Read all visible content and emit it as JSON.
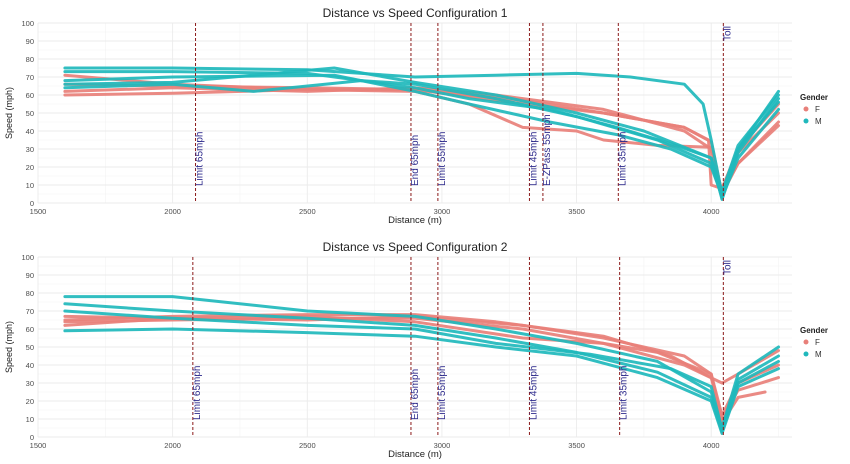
{
  "colors": {
    "F": "#e8807a",
    "M": "#20b8bc",
    "marker_line": "#8b1a1a",
    "marker_text": "#2e2b8c",
    "grid": "#ebebeb",
    "axis_text": "#4d4d4d"
  },
  "legend": {
    "title": "Gender",
    "items": [
      {
        "key": "F",
        "label": "F"
      },
      {
        "key": "M",
        "label": "M"
      }
    ]
  },
  "chart_data": [
    {
      "type": "line",
      "title": "Distance vs Speed Configuration 1",
      "xlabel": "Distance (m)",
      "ylabel": "Speed (mph)",
      "xlim": [
        1500,
        4300
      ],
      "ylim": [
        0,
        100
      ],
      "xticks": [
        1500,
        2000,
        2500,
        3000,
        3500,
        4000
      ],
      "yticks": [
        0,
        10,
        20,
        30,
        40,
        50,
        60,
        70,
        80,
        90,
        100
      ],
      "grid": true,
      "legend_position": "right",
      "markers": [
        {
          "x": 2085,
          "label": "Limit 65mph"
        },
        {
          "x": 2885,
          "label": "End 65mph"
        },
        {
          "x": 2985,
          "label": "Limit 55mph"
        },
        {
          "x": 3325,
          "label": "Limit 45mph"
        },
        {
          "x": 3375,
          "label": "E-ZPass 55mph"
        },
        {
          "x": 3655,
          "label": "Limit 35mph"
        },
        {
          "x": 4045,
          "label": "Toll"
        }
      ],
      "series": [
        {
          "group": "F",
          "points": [
            [
              1600,
              71
            ],
            [
              2000,
              66
            ],
            [
              2500,
              63
            ],
            [
              2900,
              63
            ],
            [
              3200,
              57
            ],
            [
              3600,
              50
            ],
            [
              3900,
              42
            ],
            [
              4000,
              34
            ],
            [
              4040,
              5
            ],
            [
              4100,
              22
            ],
            [
              4250,
              43
            ]
          ]
        },
        {
          "group": "F",
          "points": [
            [
              1600,
              60
            ],
            [
              2000,
              61
            ],
            [
              2500,
              63
            ],
            [
              2900,
              62
            ],
            [
              3100,
              55
            ],
            [
              3300,
              42
            ],
            [
              3500,
              40
            ],
            [
              3600,
              35
            ],
            [
              3800,
              32
            ],
            [
              4000,
              31
            ],
            [
              4040,
              6
            ],
            [
              4100,
              22
            ],
            [
              4250,
              45
            ]
          ]
        },
        {
          "group": "F",
          "points": [
            [
              1600,
              66
            ],
            [
              2000,
              65
            ],
            [
              2500,
              64
            ],
            [
              2900,
              63
            ],
            [
              3300,
              57
            ],
            [
              3600,
              50
            ],
            [
              3900,
              42
            ],
            [
              3990,
              35
            ],
            [
              4000,
              10
            ],
            [
              4040,
              8
            ],
            [
              4100,
              30
            ],
            [
              4250,
              55
            ]
          ]
        },
        {
          "group": "F",
          "points": [
            [
              1600,
              62
            ],
            [
              2000,
              64
            ],
            [
              2500,
              62
            ],
            [
              2900,
              64
            ],
            [
              3200,
              60
            ],
            [
              3600,
              52
            ],
            [
              3900,
              40
            ],
            [
              4000,
              30
            ],
            [
              4040,
              4
            ],
            [
              4100,
              28
            ],
            [
              4250,
              50
            ]
          ]
        },
        {
          "group": "M",
          "points": [
            [
              1600,
              75
            ],
            [
              2000,
              75
            ],
            [
              2500,
              74
            ],
            [
              2900,
              70
            ],
            [
              3200,
              71
            ],
            [
              3500,
              72
            ],
            [
              3700,
              70
            ],
            [
              3900,
              66
            ],
            [
              3970,
              55
            ],
            [
              4000,
              35
            ],
            [
              4040,
              5
            ],
            [
              4100,
              30
            ],
            [
              4250,
              62
            ]
          ]
        },
        {
          "group": "M",
          "points": [
            [
              1600,
              73
            ],
            [
              2000,
              73
            ],
            [
              2500,
              72
            ],
            [
              2900,
              64
            ],
            [
              3100,
              58
            ],
            [
              3400,
              52
            ],
            [
              3650,
              42
            ],
            [
              3850,
              33
            ],
            [
              4000,
              25
            ],
            [
              4040,
              2
            ],
            [
              4100,
              28
            ],
            [
              4250,
              58
            ]
          ]
        },
        {
          "group": "M",
          "points": [
            [
              1600,
              64
            ],
            [
              2000,
              66
            ],
            [
              2300,
              62
            ],
            [
              2700,
              68
            ],
            [
              2900,
              66
            ],
            [
              3200,
              58
            ],
            [
              3500,
              48
            ],
            [
              3800,
              35
            ],
            [
              4000,
              22
            ],
            [
              4040,
              3
            ],
            [
              4100,
              25
            ],
            [
              4250,
              52
            ]
          ]
        },
        {
          "group": "M",
          "points": [
            [
              1600,
              68
            ],
            [
              2000,
              70
            ],
            [
              2600,
              71
            ],
            [
              2900,
              62
            ],
            [
              3100,
              55
            ],
            [
              3400,
              45
            ],
            [
              3650,
              38
            ],
            [
              3850,
              30
            ],
            [
              4000,
              20
            ],
            [
              4040,
              4
            ],
            [
              4100,
              30
            ],
            [
              4250,
              56
            ]
          ]
        },
        {
          "group": "M",
          "points": [
            [
              1600,
              66
            ],
            [
              2000,
              67
            ],
            [
              2600,
              75
            ],
            [
              2900,
              67
            ],
            [
              3200,
              60
            ],
            [
              3500,
              50
            ],
            [
              3750,
              40
            ],
            [
              4000,
              25
            ],
            [
              4040,
              6
            ],
            [
              4100,
              32
            ],
            [
              4250,
              60
            ]
          ]
        }
      ]
    },
    {
      "type": "line",
      "title": "Distance vs Speed Configuration 2",
      "xlabel": "Distance (m)",
      "ylabel": "Speed (mph)",
      "xlim": [
        1500,
        4300
      ],
      "ylim": [
        0,
        100
      ],
      "xticks": [
        1500,
        2000,
        2500,
        3000,
        3500,
        4000
      ],
      "yticks": [
        0,
        10,
        20,
        30,
        40,
        50,
        60,
        70,
        80,
        90,
        100
      ],
      "grid": true,
      "legend_position": "right",
      "markers": [
        {
          "x": 2075,
          "label": "Limit 65mph"
        },
        {
          "x": 2885,
          "label": "End 65mph"
        },
        {
          "x": 2985,
          "label": "Limit 55mph"
        },
        {
          "x": 3325,
          "label": "Limit 45mph"
        },
        {
          "x": 3660,
          "label": "Limit 35mph"
        },
        {
          "x": 4045,
          "label": "Toll"
        }
      ],
      "series": [
        {
          "group": "F",
          "points": [
            [
              1600,
              67
            ],
            [
              2000,
              66
            ],
            [
              2500,
              65
            ],
            [
              2900,
              67
            ],
            [
              3300,
              62
            ],
            [
              3600,
              55
            ],
            [
              3900,
              45
            ],
            [
              4000,
              35
            ],
            [
              4040,
              8
            ],
            [
              4100,
              22
            ],
            [
              4200,
              25
            ]
          ]
        },
        {
          "group": "F",
          "points": [
            [
              1600,
              65
            ],
            [
              2000,
              67
            ],
            [
              2500,
              68
            ],
            [
              2900,
              68
            ],
            [
              3200,
              64
            ],
            [
              3600,
              56
            ],
            [
              3850,
              45
            ],
            [
              4000,
              33
            ],
            [
              4040,
              10
            ],
            [
              4100,
              26
            ],
            [
              4250,
              33
            ]
          ]
        },
        {
          "group": "F",
          "points": [
            [
              1600,
              62
            ],
            [
              2000,
              66
            ],
            [
              2500,
              67
            ],
            [
              2900,
              64
            ],
            [
              3300,
              55
            ],
            [
              3600,
              52
            ],
            [
              3800,
              47
            ],
            [
              4000,
              35
            ],
            [
              4040,
              12
            ],
            [
              4100,
              30
            ],
            [
              4250,
              40
            ]
          ]
        },
        {
          "group": "F",
          "points": [
            [
              1600,
              64
            ],
            [
              2000,
              65
            ],
            [
              2500,
              66
            ],
            [
              2900,
              66
            ],
            [
              3300,
              60
            ],
            [
              3600,
              52
            ],
            [
              3900,
              40
            ],
            [
              4040,
              30
            ],
            [
              4100,
              35
            ],
            [
              4250,
              48
            ]
          ]
        },
        {
          "group": "M",
          "points": [
            [
              1600,
              78
            ],
            [
              2000,
              78
            ],
            [
              2500,
              70
            ],
            [
              2900,
              67
            ],
            [
              3200,
              60
            ],
            [
              3500,
              52
            ],
            [
              3800,
              42
            ],
            [
              4000,
              25
            ],
            [
              4040,
              5
            ],
            [
              4100,
              35
            ],
            [
              4250,
              50
            ]
          ]
        },
        {
          "group": "M",
          "points": [
            [
              1600,
              74
            ],
            [
              2000,
              70
            ],
            [
              2500,
              66
            ],
            [
              2900,
              62
            ],
            [
              3200,
              55
            ],
            [
              3500,
              47
            ],
            [
              3800,
              36
            ],
            [
              4000,
              22
            ],
            [
              4040,
              3
            ],
            [
              4100,
              30
            ],
            [
              4250,
              42
            ]
          ]
        },
        {
          "group": "M",
          "points": [
            [
              1600,
              59
            ],
            [
              2000,
              60
            ],
            [
              2500,
              58
            ],
            [
              2900,
              56
            ],
            [
              3200,
              50
            ],
            [
              3500,
              45
            ],
            [
              3800,
              33
            ],
            [
              4000,
              20
            ],
            [
              4040,
              2
            ],
            [
              4100,
              28
            ],
            [
              4250,
              38
            ]
          ]
        },
        {
          "group": "M",
          "points": [
            [
              1600,
              70
            ],
            [
              2000,
              66
            ],
            [
              2500,
              62
            ],
            [
              2900,
              60
            ],
            [
              3200,
              52
            ],
            [
              3550,
              46
            ],
            [
              3850,
              38
            ],
            [
              4000,
              28
            ],
            [
              4040,
              4
            ],
            [
              4100,
              32
            ],
            [
              4250,
              45
            ]
          ]
        }
      ]
    }
  ]
}
